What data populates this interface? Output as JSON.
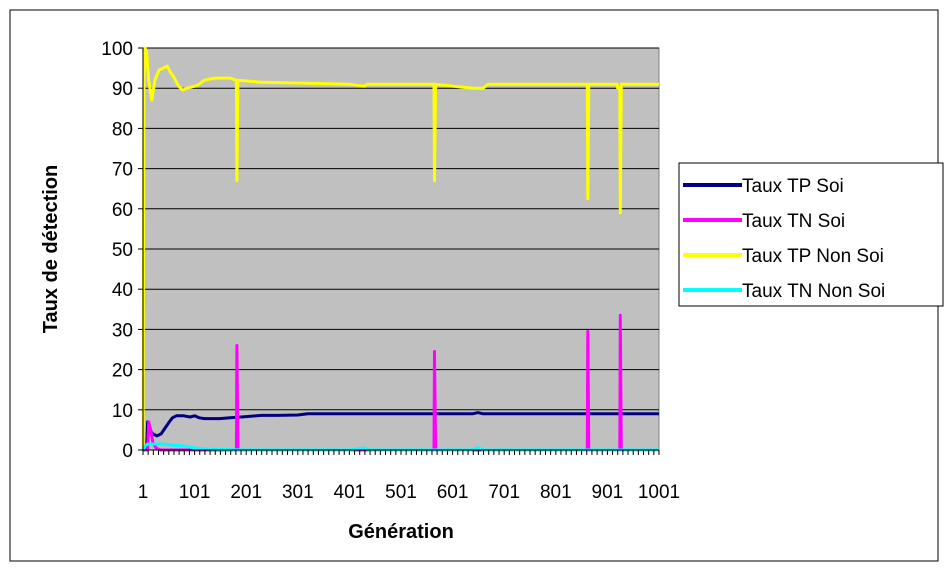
{
  "chart_data": {
    "type": "line",
    "xlabel": "Génération",
    "ylabel": "Taux de détection",
    "xlim": [
      1,
      1001
    ],
    "ylim": [
      0,
      100
    ],
    "x_tick_labels": [
      "1",
      "101",
      "201",
      "301",
      "401",
      "501",
      "601",
      "701",
      "801",
      "901",
      "1001"
    ],
    "y_tick_labels": [
      "0",
      "10",
      "20",
      "30",
      "40",
      "50",
      "60",
      "70",
      "80",
      "90",
      "100"
    ],
    "grid": "horizontal",
    "legend_position": "right",
    "series": [
      {
        "name": "Taux TP Soi",
        "color": "#000080",
        "points": [
          [
            1,
            0
          ],
          [
            8,
            0
          ],
          [
            10,
            7
          ],
          [
            14,
            5
          ],
          [
            20,
            4
          ],
          [
            28,
            3.5
          ],
          [
            36,
            4
          ],
          [
            44,
            5.5
          ],
          [
            52,
            7
          ],
          [
            58,
            8
          ],
          [
            66,
            8.5
          ],
          [
            80,
            8.5
          ],
          [
            92,
            8.2
          ],
          [
            101,
            8.5
          ],
          [
            110,
            8
          ],
          [
            120,
            7.8
          ],
          [
            150,
            7.8
          ],
          [
            170,
            8
          ],
          [
            201,
            8.3
          ],
          [
            230,
            8.6
          ],
          [
            260,
            8.6
          ],
          [
            301,
            8.7
          ],
          [
            320,
            9
          ],
          [
            401,
            9
          ],
          [
            501,
            9
          ],
          [
            640,
            9
          ],
          [
            650,
            9.3
          ],
          [
            660,
            9
          ],
          [
            701,
            9
          ],
          [
            801,
            9
          ],
          [
            901,
            9
          ],
          [
            1001,
            9
          ]
        ]
      },
      {
        "name": "Taux TN Soi",
        "color": "#ff00ff",
        "points": [
          [
            1,
            0
          ],
          [
            10,
            0
          ],
          [
            12,
            7
          ],
          [
            16,
            5
          ],
          [
            20,
            2
          ],
          [
            26,
            0.5
          ],
          [
            35,
            0
          ],
          [
            100,
            0
          ],
          [
            182,
            0
          ],
          [
            183,
            26
          ],
          [
            185,
            0
          ],
          [
            565,
            0
          ],
          [
            566,
            24.5
          ],
          [
            568,
            0
          ],
          [
            862,
            0
          ],
          [
            863,
            29.5
          ],
          [
            865,
            0
          ],
          [
            925,
            0
          ],
          [
            926,
            33.5
          ],
          [
            928,
            0
          ],
          [
            1001,
            0
          ]
        ]
      },
      {
        "name": "Taux TP Non Soi",
        "color": "#ffff00",
        "points": [
          [
            1,
            0
          ],
          [
            3,
            92
          ],
          [
            5,
            100
          ],
          [
            8,
            99
          ],
          [
            12,
            92
          ],
          [
            18,
            87
          ],
          [
            24,
            92
          ],
          [
            32,
            94.5
          ],
          [
            40,
            95
          ],
          [
            48,
            95.5
          ],
          [
            54,
            94
          ],
          [
            62,
            92.5
          ],
          [
            70,
            90.5
          ],
          [
            78,
            89.5
          ],
          [
            86,
            90
          ],
          [
            101,
            90.5
          ],
          [
            110,
            91
          ],
          [
            120,
            92
          ],
          [
            140,
            92.5
          ],
          [
            170,
            92.5
          ],
          [
            182,
            92
          ],
          [
            183,
            67
          ],
          [
            185,
            92
          ],
          [
            230,
            91.5
          ],
          [
            301,
            91.3
          ],
          [
            401,
            91
          ],
          [
            430,
            90.5
          ],
          [
            435,
            91
          ],
          [
            501,
            91
          ],
          [
            565,
            91
          ],
          [
            566,
            67
          ],
          [
            568,
            91
          ],
          [
            640,
            90
          ],
          [
            660,
            90
          ],
          [
            670,
            91
          ],
          [
            701,
            91
          ],
          [
            801,
            91
          ],
          [
            862,
            91
          ],
          [
            863,
            62.5
          ],
          [
            865,
            91
          ],
          [
            920,
            91
          ],
          [
            921,
            90
          ],
          [
            925,
            90
          ],
          [
            926,
            59
          ],
          [
            928,
            91
          ],
          [
            1001,
            91
          ]
        ]
      },
      {
        "name": "Taux TN Non Soi",
        "color": "#00ffff",
        "points": [
          [
            1,
            0
          ],
          [
            5,
            1
          ],
          [
            10,
            1.5
          ],
          [
            20,
            1.5
          ],
          [
            40,
            1.5
          ],
          [
            60,
            1.2
          ],
          [
            80,
            1
          ],
          [
            101,
            0.5
          ],
          [
            130,
            0.2
          ],
          [
            201,
            0
          ],
          [
            401,
            0
          ],
          [
            430,
            0.5
          ],
          [
            440,
            0
          ],
          [
            640,
            0
          ],
          [
            650,
            0.6
          ],
          [
            660,
            0
          ],
          [
            1001,
            0
          ]
        ]
      }
    ]
  }
}
